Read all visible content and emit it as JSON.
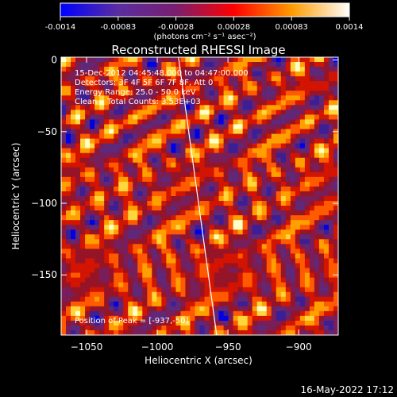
{
  "colorbar": {
    "ticks": [
      "-0.0014",
      "-0.00083",
      "-0.00028",
      "0.00028",
      "0.00083",
      "0.0014"
    ],
    "unit_label": "(photons cm⁻² s⁻¹ asec⁻²)",
    "range": [
      -0.0014,
      0.0014
    ],
    "stops": [
      "#0000ff",
      "#5a2ea0",
      "#7a1e70",
      "#ff0000",
      "#ff9a00",
      "#ffffff"
    ]
  },
  "chart_data": {
    "type": "heatmap",
    "title": "Reconstructed RHESSI Image",
    "xlabel": "Heliocentric X (arcsec)",
    "ylabel": "Heliocentric Y (arcsec)",
    "xlim": [
      -1068,
      -872
    ],
    "ylim": [
      -192,
      2
    ],
    "x_ticks": [
      -1050,
      -1000,
      -950,
      -900
    ],
    "x_tick_labels": [
      "−1050",
      "−1000",
      "−950",
      "−900"
    ],
    "y_ticks": [
      0,
      -50,
      -100,
      -150
    ],
    "y_tick_labels": [
      "0",
      "−50",
      "−100",
      "−150"
    ],
    "limb_line": [
      [
        -985,
        2
      ],
      [
        -958,
        -192
      ]
    ],
    "annotations": [
      "15-Dec-2012 04:45:48.000 to 04:47:00.000",
      "Detectors: 3F 4F 5F 6F 7F 8F, Att 0",
      "Energy Range: 25.0 - 50.0 keV",
      "Clean    Total Counts: 3.53E+03"
    ],
    "peak_label": "Position of Peak = [-937,-50]",
    "peak": [
      -937,
      -50
    ]
  },
  "footer": {
    "timestamp": "16-May-2022 17:12"
  }
}
